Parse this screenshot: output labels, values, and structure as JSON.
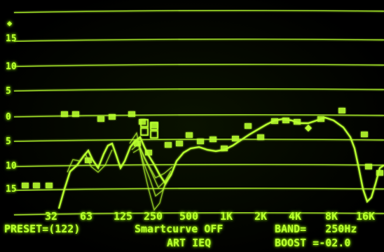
{
  "screen": {
    "phosphor_color": "#b8ff2e",
    "glow_color": "#9cff00",
    "background": "#000000"
  },
  "y_axis": {
    "marker_icon": "diamond-icon",
    "labels": [
      "15",
      "10",
      "5",
      "0",
      "5",
      "10",
      "15"
    ]
  },
  "x_axis": {
    "labels": [
      "32",
      "63",
      "125",
      "250",
      "500",
      "1K",
      "2K",
      "4K",
      "8K",
      "16K"
    ]
  },
  "status": {
    "preset": "PRESET=(122)",
    "smartcurve": "Smartcurve OFF",
    "mode": "ART IEQ",
    "band": "BAND=   250Hz",
    "boost": "BOOST =-02.0"
  }
}
